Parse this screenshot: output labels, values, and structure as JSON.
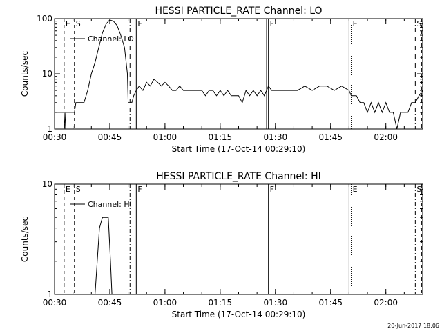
{
  "footer_stamp": "20-Jun-2017 18:06",
  "chart_data": [
    {
      "type": "line",
      "title": "HESSI PARTICLE_RATE Channel: LO",
      "xlabel": "Start Time (17-Oct-14 00:29:10)",
      "ylabel": "Counts/sec",
      "y_scale": "log",
      "ylim": [
        1,
        100
      ],
      "xlim_minutes": [
        0,
        100
      ],
      "x_ticks": [
        {
          "label": "00:30",
          "minute": 0
        },
        {
          "label": "00:45",
          "minute": 15
        },
        {
          "label": "01:00",
          "minute": 30
        },
        {
          "label": "01:15",
          "minute": 45
        },
        {
          "label": "01:30",
          "minute": 60
        },
        {
          "label": "01:45",
          "minute": 75
        },
        {
          "label": "02:00",
          "minute": 90
        }
      ],
      "y_ticks": [
        {
          "label": "1",
          "value": 1
        },
        {
          "label": "10",
          "value": 10
        },
        {
          "label": "100",
          "value": 100
        }
      ],
      "legend": {
        "label": "Channel: LO",
        "placement": "top-left"
      },
      "grid": false,
      "markers": [
        {
          "minute": 2.6,
          "style": "dashed",
          "label": "E"
        },
        {
          "minute": 5.4,
          "style": "dashed",
          "label": "S"
        },
        {
          "minute": 20.5,
          "style": "dashdot",
          "label": ""
        },
        {
          "minute": 22.2,
          "style": "solid",
          "label": "F"
        },
        {
          "minute": 57.6,
          "style": "solid",
          "label": ""
        },
        {
          "minute": 58.1,
          "style": "solid",
          "label": "F"
        },
        {
          "minute": 80.0,
          "style": "solid",
          "label": ""
        },
        {
          "minute": 80.6,
          "style": "dotted",
          "label": "E"
        },
        {
          "minute": 98.0,
          "style": "dashdot",
          "label": "S"
        },
        {
          "minute": 99.7,
          "style": "dashed",
          "label": ""
        }
      ],
      "series": [
        {
          "name": "",
          "points": [
            [
              0,
              2
            ],
            [
              2,
              2
            ],
            [
              2.6,
              2
            ],
            [
              2.8,
              1
            ],
            [
              3.0,
              2
            ],
            [
              5,
              2
            ],
            [
              5.4,
              2
            ],
            [
              5.8,
              3
            ],
            [
              7,
              3
            ],
            [
              8,
              3
            ],
            [
              9,
              5
            ],
            [
              10,
              10
            ],
            [
              11,
              16
            ],
            [
              12,
              30
            ],
            [
              13,
              55
            ],
            [
              14,
              80
            ],
            [
              15,
              95
            ],
            [
              16,
              90
            ],
            [
              17,
              75
            ],
            [
              18,
              50
            ],
            [
              19,
              30
            ],
            [
              19.8,
              10
            ],
            [
              20,
              3
            ],
            [
              20.5,
              3
            ],
            [
              21,
              3
            ],
            [
              21.5,
              4
            ],
            [
              22.2,
              5
            ],
            [
              23,
              6
            ],
            [
              24,
              5
            ],
            [
              25,
              7
            ],
            [
              26,
              6
            ],
            [
              27,
              8
            ],
            [
              28,
              7
            ],
            [
              29,
              6
            ],
            [
              30,
              7
            ],
            [
              31,
              6
            ],
            [
              32,
              5
            ],
            [
              33,
              5
            ],
            [
              34,
              6
            ],
            [
              35,
              5
            ],
            [
              36,
              5
            ],
            [
              38,
              5
            ],
            [
              40,
              5
            ],
            [
              41,
              4
            ],
            [
              42,
              5
            ],
            [
              43,
              5
            ],
            [
              44,
              4
            ],
            [
              45,
              5
            ],
            [
              46,
              4
            ],
            [
              47,
              5
            ],
            [
              48,
              4
            ],
            [
              49,
              4
            ],
            [
              50,
              4
            ],
            [
              51,
              3
            ],
            [
              52,
              5
            ],
            [
              53,
              4
            ],
            [
              54,
              5
            ],
            [
              55,
              4
            ],
            [
              56,
              5
            ],
            [
              57,
              4
            ],
            [
              57.6,
              5
            ],
            [
              58.1,
              6
            ],
            [
              59,
              5
            ],
            [
              60,
              5
            ],
            [
              62,
              5
            ],
            [
              64,
              5
            ],
            [
              66,
              5
            ],
            [
              68,
              6
            ],
            [
              70,
              5
            ],
            [
              72,
              6
            ],
            [
              74,
              6
            ],
            [
              76,
              5
            ],
            [
              78,
              6
            ],
            [
              80,
              5
            ],
            [
              80.6,
              4
            ],
            [
              82,
              4
            ],
            [
              83,
              3
            ],
            [
              84,
              3
            ],
            [
              85,
              2
            ],
            [
              86,
              3
            ],
            [
              87,
              2
            ],
            [
              88,
              3
            ],
            [
              89,
              2
            ],
            [
              90,
              3
            ],
            [
              91,
              2
            ],
            [
              92,
              2
            ],
            [
              93,
              1
            ],
            [
              94,
              2
            ],
            [
              95,
              2
            ],
            [
              96,
              2
            ],
            [
              97,
              3
            ],
            [
              98,
              3
            ],
            [
              99,
              4
            ],
            [
              100,
              5
            ]
          ]
        }
      ]
    },
    {
      "type": "line",
      "title": "HESSI PARTICLE_RATE Channel: HI",
      "xlabel": "Start Time (17-Oct-14 00:29:10)",
      "ylabel": "Counts/sec",
      "y_scale": "log",
      "ylim": [
        1,
        10
      ],
      "xlim_minutes": [
        0,
        100
      ],
      "x_ticks": [
        {
          "label": "00:30",
          "minute": 0
        },
        {
          "label": "00:45",
          "minute": 15
        },
        {
          "label": "01:00",
          "minute": 30
        },
        {
          "label": "01:15",
          "minute": 45
        },
        {
          "label": "01:30",
          "minute": 60
        },
        {
          "label": "01:45",
          "minute": 75
        },
        {
          "label": "02:00",
          "minute": 90
        }
      ],
      "y_ticks": [
        {
          "label": "1",
          "value": 1
        },
        {
          "label": "10",
          "value": 10
        }
      ],
      "legend": {
        "label": "Channel: HI",
        "placement": "top-left"
      },
      "grid": false,
      "markers": [
        {
          "minute": 2.6,
          "style": "dashed",
          "label": "E"
        },
        {
          "minute": 5.4,
          "style": "dashed",
          "label": "S"
        },
        {
          "minute": 20.5,
          "style": "dashdot",
          "label": ""
        },
        {
          "minute": 22.2,
          "style": "solid",
          "label": "F"
        },
        {
          "minute": 58.1,
          "style": "solid",
          "label": "F"
        },
        {
          "minute": 80.0,
          "style": "solid",
          "label": ""
        },
        {
          "minute": 80.6,
          "style": "dotted",
          "label": "E"
        },
        {
          "minute": 98.0,
          "style": "dashdot",
          "label": "S"
        },
        {
          "minute": 99.7,
          "style": "dashed",
          "label": ""
        }
      ],
      "series": [
        {
          "name": "",
          "points": [
            [
              11,
              1
            ],
            [
              11.6,
              2
            ],
            [
              12.2,
              4
            ],
            [
              13,
              5
            ],
            [
              14,
              5
            ],
            [
              14.6,
              5
            ],
            [
              15.2,
              2
            ],
            [
              15.6,
              1
            ]
          ]
        }
      ]
    }
  ]
}
